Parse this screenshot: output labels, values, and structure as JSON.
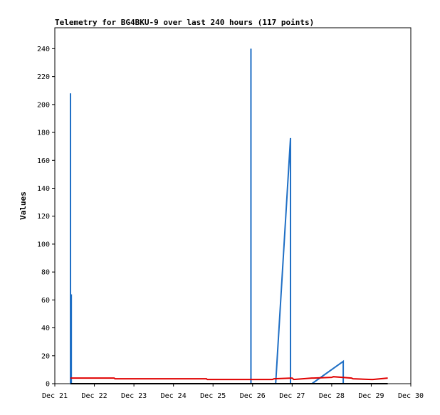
{
  "chart_data": {
    "type": "line",
    "title": "Telemetry for BG4BKU-9 over last 240 hours (117 points)",
    "xlabel": "",
    "ylabel": "Values",
    "x_unit": "date",
    "xlim": [
      "Dec 21 00:00",
      "Dec 30 00:00"
    ],
    "ylim": [
      0,
      255
    ],
    "x_ticks": [
      "Dec 21",
      "Dec 22",
      "Dec 23",
      "Dec 24",
      "Dec 25",
      "Dec 26",
      "Dec 27",
      "Dec 28",
      "Dec 29",
      "Dec 30"
    ],
    "y_ticks": [
      0,
      20,
      40,
      60,
      80,
      100,
      120,
      140,
      160,
      180,
      200,
      220,
      240
    ],
    "grid": false,
    "legend": "none",
    "colors": {
      "blue": "#1f6fc5",
      "red": "#e00000",
      "black": "#000000"
    },
    "series": [
      {
        "color": "blue",
        "x": [
          "Dec 21 09:30",
          "Dec 21 09:30",
          "Dec 21 09:30",
          "Dec 21 10:00",
          "Dec 21 10:00",
          "Dec 21 10:00",
          "Dec 25 23:00",
          "Dec 25 23:00",
          "Dec 25 23:00",
          "Dec 26 14:00",
          "Dec 26 23:00",
          "Dec 26 23:00",
          "Dec 27 12:00",
          "Dec 28 07:00",
          "Dec 28 07:00"
        ],
        "y": [
          0,
          208,
          0,
          0,
          64,
          0,
          0,
          240,
          0,
          0,
          176,
          0,
          0,
          16,
          0
        ]
      },
      {
        "color": "red",
        "x": [
          "Dec 21 09:30",
          "Dec 22 12:00",
          "Dec 22 12:30",
          "Dec 24 20:00",
          "Dec 24 20:30",
          "Dec 26 12:00",
          "Dec 26 13:00",
          "Dec 27 00:00",
          "Dec 27 01:00",
          "Dec 27 12:00",
          "Dec 27 13:00",
          "Dec 28 00:00",
          "Dec 28 01:00",
          "Dec 28 12:00",
          "Dec 28 13:00",
          "Dec 29 00:00",
          "Dec 29 01:00",
          "Dec 29 10:00"
        ],
        "y": [
          4,
          4,
          3.5,
          3.5,
          3,
          3,
          3.5,
          4,
          3,
          4,
          4,
          4.5,
          5,
          4,
          3.5,
          3,
          3,
          4
        ]
      },
      {
        "color": "black",
        "x": [
          "Dec 21 09:30",
          "Dec 29 10:00"
        ],
        "y": [
          0,
          0
        ]
      }
    ]
  }
}
